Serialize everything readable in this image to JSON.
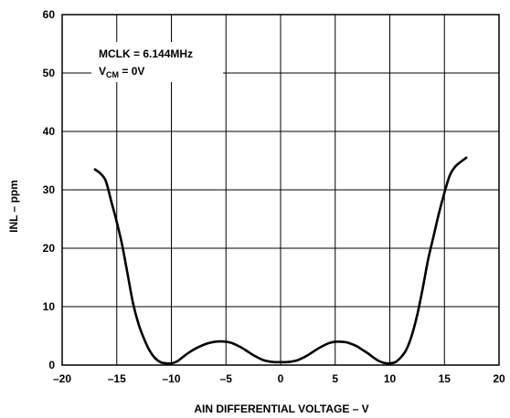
{
  "chart_data": {
    "type": "line",
    "title": "",
    "xlabel": "AIN DIFFERENTIAL VOLTAGE – V",
    "ylabel": "INL – ppm",
    "xlim": [
      -20,
      20
    ],
    "ylim": [
      0,
      60
    ],
    "x_ticks": [
      -20,
      -15,
      -10,
      -5,
      0,
      5,
      10,
      15,
      20
    ],
    "y_ticks": [
      0,
      10,
      20,
      30,
      40,
      50,
      60
    ],
    "x_tick_labels": [
      "–20",
      "–15",
      "–10",
      "–5",
      "0",
      "5",
      "10",
      "15",
      "20"
    ],
    "y_tick_labels": [
      "0",
      "10",
      "20",
      "30",
      "40",
      "50",
      "60"
    ],
    "grid": true,
    "annotation": {
      "line1": "MCLK = 6.144MHz",
      "line2_prefix": "V",
      "line2_sub": "CM",
      "line2_suffix": " = 0V"
    },
    "series": [
      {
        "name": "",
        "color": "#000000",
        "x": [
          -17.0,
          -16.5,
          -16.0,
          -15.5,
          -15.0,
          -14.5,
          -14.0,
          -13.5,
          -13.0,
          -12.5,
          -12.0,
          -11.5,
          -11.0,
          -10.5,
          -10.0,
          -9.5,
          -9.0,
          -8.5,
          -8.0,
          -7.5,
          -7.0,
          -6.5,
          -6.0,
          -5.5,
          -5.0,
          -4.5,
          -4.0,
          -3.5,
          -3.0,
          -2.5,
          -2.0,
          -1.5,
          -1.0,
          -0.5,
          0.0,
          0.5,
          1.0,
          1.5,
          2.0,
          2.5,
          3.0,
          3.5,
          4.0,
          4.5,
          5.0,
          5.5,
          6.0,
          6.5,
          7.0,
          7.5,
          8.0,
          8.5,
          9.0,
          9.5,
          10.0,
          10.5,
          11.0,
          11.5,
          12.0,
          12.5,
          13.0,
          13.5,
          14.0,
          14.5,
          15.0,
          15.5,
          16.0,
          16.5,
          17.0
        ],
        "y": [
          33.5,
          32.8,
          31.5,
          28.0,
          24.5,
          20.5,
          15.5,
          10.5,
          7.0,
          4.5,
          2.5,
          1.2,
          0.5,
          0.3,
          0.3,
          0.6,
          1.3,
          2.0,
          2.6,
          3.1,
          3.5,
          3.8,
          4.0,
          4.05,
          4.0,
          3.8,
          3.4,
          2.9,
          2.3,
          1.7,
          1.2,
          0.8,
          0.6,
          0.5,
          0.5,
          0.5,
          0.6,
          0.8,
          1.2,
          1.7,
          2.3,
          2.9,
          3.4,
          3.8,
          4.0,
          4.0,
          3.9,
          3.6,
          3.2,
          2.6,
          2.0,
          1.3,
          0.7,
          0.35,
          0.3,
          0.5,
          1.3,
          2.6,
          5.0,
          8.5,
          13.0,
          18.0,
          22.0,
          26.0,
          29.5,
          32.5,
          34.0,
          34.8,
          35.5
        ]
      }
    ]
  }
}
